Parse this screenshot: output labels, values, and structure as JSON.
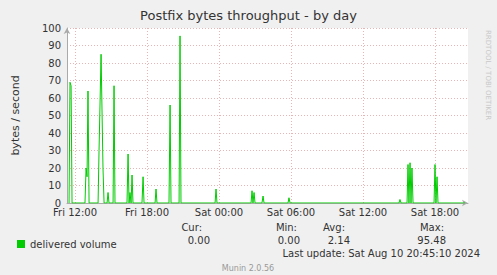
{
  "chart_data": {
    "type": "line",
    "title": "Postfix bytes throughput - by day",
    "y_label": "bytes / second",
    "x": [
      11.5,
      11.58,
      11.67,
      11.75,
      12.83,
      12.92,
      13.0,
      13.08,
      13.17,
      13.92,
      14.0,
      14.17,
      14.33,
      14.42,
      14.67,
      14.75,
      14.83,
      15.17,
      15.25,
      15.33,
      16.33,
      16.42,
      16.5,
      16.58,
      16.67,
      16.75,
      16.83,
      17.58,
      17.67,
      17.75,
      18.67,
      18.75,
      18.83,
      19.83,
      19.92,
      20.0,
      20.67,
      20.75,
      20.83,
      23.67,
      23.75,
      23.83,
      26.67,
      26.75,
      26.83,
      26.92,
      27.0,
      27.58,
      27.67,
      27.75,
      29.75,
      29.83,
      29.92,
      39.0,
      39.08,
      39.17,
      39.67,
      39.75,
      39.83,
      39.92,
      40.0,
      40.08,
      40.17,
      41.92,
      42.0,
      42.08,
      42.17,
      42.25,
      44.5
    ],
    "series": [
      {
        "name": "delivered volume",
        "color": "#00cc00",
        "values": [
          0,
          69,
          67,
          0,
          0,
          20,
          15,
          64,
          0,
          0,
          30,
          85,
          20,
          0,
          0,
          6,
          0,
          0,
          67,
          0,
          0,
          28,
          0,
          6,
          0,
          16,
          0,
          0,
          15,
          0,
          0,
          8,
          0,
          0,
          56,
          0,
          0,
          95.48,
          0,
          0,
          8,
          0,
          0,
          7,
          0,
          6,
          0,
          0,
          4,
          0,
          0,
          3,
          0,
          0,
          2,
          0,
          0,
          22,
          0,
          23,
          0,
          20,
          0,
          0,
          22,
          0,
          15,
          0,
          0
        ],
        "stats": [
          {
            "name": "Cur:",
            "value": 0,
            "label": "0.00"
          },
          {
            "name": "Min:",
            "value": 0,
            "label": "0.00"
          },
          {
            "name": "Avg:",
            "value": 2.14,
            "label": "2.14"
          },
          {
            "name": "Max:",
            "value": 95.48,
            "label": "95.48"
          }
        ]
      }
    ],
    "xlim": [
      11.33,
      44.75
    ],
    "xticks": [
      {
        "value": 12,
        "label": "Fri 12:00"
      },
      {
        "value": 18,
        "label": "Fri 18:00"
      },
      {
        "value": 24,
        "label": "Sat 00:00"
      },
      {
        "value": 30,
        "label": "Sat 06:00"
      },
      {
        "value": 36,
        "label": "Sat 12:00"
      },
      {
        "value": 42,
        "label": "Sat 18:00"
      }
    ],
    "ylim": [
      0,
      100
    ],
    "yticks": [
      0,
      10,
      20,
      30,
      40,
      50,
      60,
      70,
      80,
      90,
      100
    ],
    "grid": true,
    "legend": "bottom-left",
    "last_update": "Last update: Sat Aug 10 20:45:10 2024",
    "generator": "Munin 2.0.56",
    "side_text": "RRDTOOL / TOBI OETIKER"
  }
}
